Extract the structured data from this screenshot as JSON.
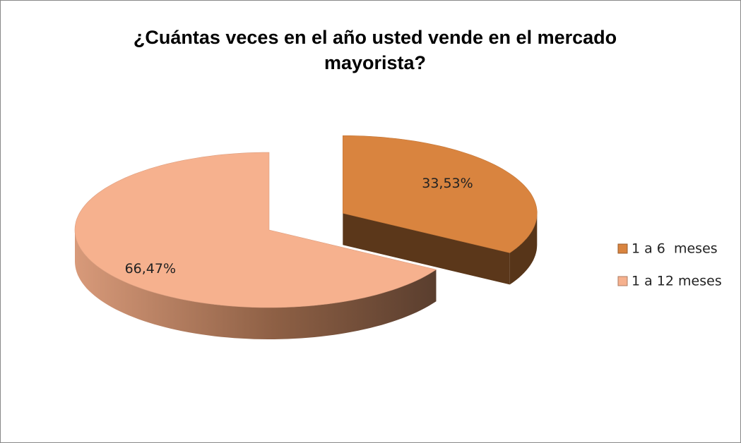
{
  "chart_data": {
    "type": "pie",
    "title": "¿Cuántas veces en el año usted vende en el mercado mayorista?",
    "categories": [
      "1 a 6  meses",
      "1 a 12 meses"
    ],
    "values": [
      33.53,
      66.47
    ],
    "value_labels": [
      "33,53%",
      "66,47%"
    ],
    "colors": [
      "#d9843f",
      "#f6b18e"
    ],
    "legend": "right",
    "exploded": [
      true,
      false
    ]
  }
}
